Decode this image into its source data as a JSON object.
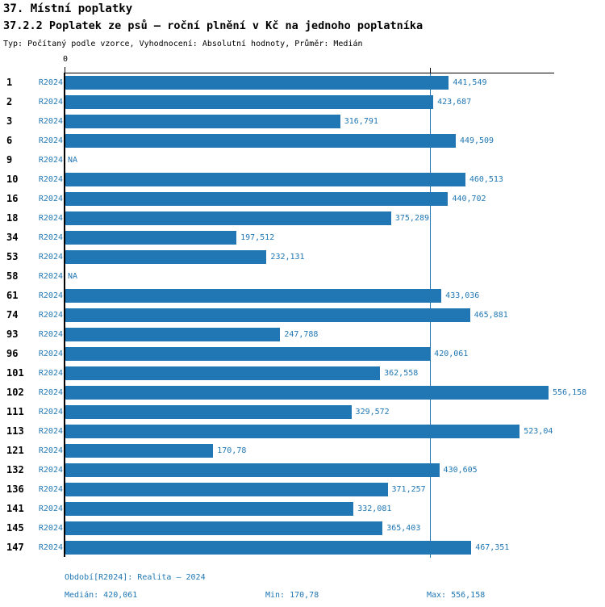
{
  "page": {
    "title": "37. Místní poplatky",
    "subtitle": "37.2.2 Poplatek ze psů – roční plnění v Kč na jednoho poplatníka",
    "meta_line": "Typ: Počítaný podle vzorce, Vyhodnocení: Absolutní hodnoty, Průměr: Medián"
  },
  "axis": {
    "zero_label": "0"
  },
  "colors": {
    "bar": "#2077b4",
    "blue_text": "#2077b4",
    "axis": "#000000"
  },
  "chart_data": {
    "type": "bar",
    "orientation": "horizontal",
    "title": "37.2.2 Poplatek ze psů – roční plnění v Kč na jednoho poplatníka",
    "xlabel": "",
    "ylabel": "",
    "grid": false,
    "legend": false,
    "xlim": [
      0,
      556.158
    ],
    "categories": [
      "1",
      "2",
      "3",
      "6",
      "9",
      "10",
      "16",
      "18",
      "34",
      "53",
      "58",
      "61",
      "74",
      "93",
      "96",
      "101",
      "102",
      "111",
      "113",
      "121",
      "132",
      "136",
      "141",
      "145",
      "147"
    ],
    "series": [
      {
        "name": "R2024",
        "values": [
          441.549,
          423.687,
          316.791,
          449.509,
          null,
          460.513,
          440.702,
          375.289,
          197.512,
          232.131,
          null,
          433.036,
          465.881,
          247.788,
          420.061,
          362.558,
          556.158,
          329.572,
          523.04,
          170.78,
          430.605,
          371.257,
          332.081,
          365.403,
          467.351
        ]
      }
    ],
    "value_labels": [
      "441,549",
      "423,687",
      "316,791",
      "449,509",
      "NA",
      "460,513",
      "440,702",
      "375,289",
      "197,512",
      "232,131",
      "NA",
      "433,036",
      "465,881",
      "247,788",
      "420,061",
      "362,558",
      "556,158",
      "329,572",
      "523,04",
      "170,78",
      "430,605",
      "371,257",
      "332,081",
      "365,403",
      "467,351"
    ],
    "na_label": "NA",
    "reference_line": {
      "type": "median",
      "value": 420.061
    },
    "axis_tick_labels": [
      "0"
    ]
  },
  "footer": {
    "period": "Období[R2024]: Realita – 2024",
    "median": "Medián: 420,061",
    "min": "Min: 170,78",
    "max": "Max: 556,158"
  }
}
